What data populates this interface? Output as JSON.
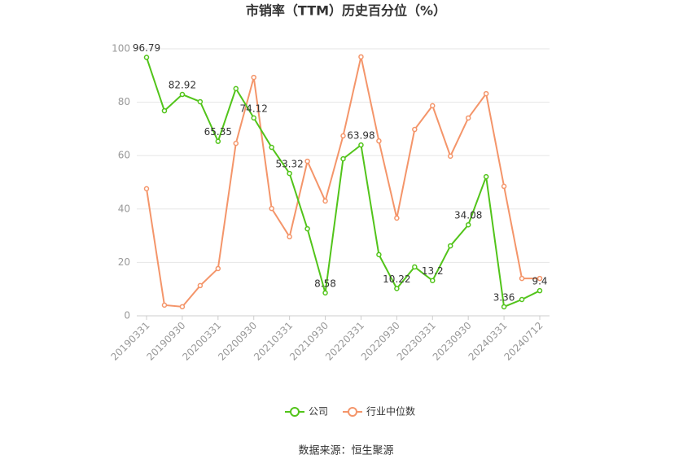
{
  "chart_data": {
    "type": "line",
    "title": "市销率（TTM）历史百分位（%）",
    "categories": [
      "20190331",
      null,
      "20190930",
      null,
      "20200331",
      null,
      "20200930",
      null,
      "20210331",
      null,
      "20210930",
      null,
      "20220331",
      null,
      "20220930",
      null,
      "20230331",
      null,
      "20230930",
      null,
      "20240331",
      null,
      "20240712"
    ],
    "series": [
      {
        "name": "公司",
        "color": "#52c41a",
        "label_every": 2,
        "values": [
          96.79,
          76.8,
          82.92,
          80.2,
          65.35,
          85.1,
          74.12,
          63.1,
          53.32,
          32.6,
          8.58,
          58.8,
          63.98,
          22.9,
          10.22,
          18.3,
          13.2,
          26.2,
          34.08,
          52.1,
          3.36,
          6.1,
          9.4
        ]
      },
      {
        "name": "行业中位数",
        "color": "#f4956a",
        "values": [
          47.6,
          4.0,
          3.4,
          11.3,
          17.7,
          64.6,
          89.3,
          40.2,
          29.6,
          57.9,
          43.0,
          67.4,
          97.0,
          65.5,
          36.6,
          69.8,
          78.7,
          59.8,
          74.1,
          83.2,
          48.5,
          14.0,
          14.0
        ]
      }
    ],
    "ylim": [
      0,
      100
    ],
    "yticks": [
      0,
      20,
      40,
      60,
      80,
      100
    ],
    "grid": true,
    "legend": "bottom",
    "source": "数据来源：恒生聚源"
  }
}
